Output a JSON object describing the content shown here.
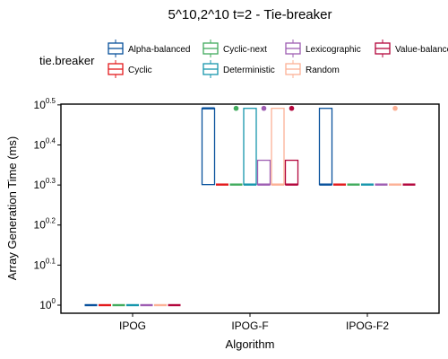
{
  "chart_data": {
    "type": "box",
    "title": "5^10,2^10 t=2 - Tie-breaker",
    "xlabel": "Algorithm",
    "ylabel": "Array Generation Time (ms)",
    "y_scale": "log10",
    "ylim": [
      1.0,
      3.16
    ],
    "y_ticks": [
      {
        "base": "10",
        "exp": "0"
      },
      {
        "base": "10",
        "exp": "0.1"
      },
      {
        "base": "10",
        "exp": "0.2"
      },
      {
        "base": "10",
        "exp": "0.3"
      },
      {
        "base": "10",
        "exp": "0.4"
      },
      {
        "base": "10",
        "exp": "0.5"
      }
    ],
    "categories": [
      "IPOG",
      "IPOG-F",
      "IPOG-F2"
    ],
    "legend": {
      "title": "tie.breaker",
      "position": "top",
      "row1": [
        "Alpha-balanced",
        "Cyclic-next",
        "Lexicographic",
        "Value-balanced"
      ],
      "row2": [
        "Cyclic",
        "Deterministic",
        "Random"
      ]
    },
    "series": [
      {
        "name": "Alpha-balanced",
        "color": "#08519c",
        "boxes": [
          {
            "min": 1,
            "q1": 1,
            "median": 1,
            "q3": 1,
            "max": 1,
            "outliers": []
          },
          {
            "min": 2,
            "q1": 2,
            "median": 3.1,
            "q3": 3.1,
            "max": 3.1,
            "outliers": []
          },
          {
            "min": 2,
            "q1": 2,
            "median": 2,
            "q3": 3.1,
            "max": 3.1,
            "outliers": []
          }
        ]
      },
      {
        "name": "Cyclic",
        "color": "#e31a1c",
        "boxes": [
          {
            "min": 1,
            "q1": 1,
            "median": 1,
            "q3": 1,
            "max": 1,
            "outliers": []
          },
          {
            "min": 2,
            "q1": 2,
            "median": 2,
            "q3": 2,
            "max": 2,
            "outliers": []
          },
          {
            "min": 2,
            "q1": 2,
            "median": 2,
            "q3": 2,
            "max": 2,
            "outliers": []
          }
        ]
      },
      {
        "name": "Cyclic-next",
        "color": "#41ab5d",
        "boxes": [
          {
            "min": 1,
            "q1": 1,
            "median": 1,
            "q3": 1,
            "max": 1,
            "outliers": []
          },
          {
            "min": 2,
            "q1": 2,
            "median": 2,
            "q3": 2,
            "max": 2,
            "outliers": [
              3.1
            ]
          },
          {
            "min": 2,
            "q1": 2,
            "median": 2,
            "q3": 2,
            "max": 2,
            "outliers": []
          }
        ]
      },
      {
        "name": "Deterministic",
        "color": "#1696ac",
        "boxes": [
          {
            "min": 1,
            "q1": 1,
            "median": 1,
            "q3": 1,
            "max": 1,
            "outliers": []
          },
          {
            "min": 2,
            "q1": 2,
            "median": 2,
            "q3": 3.1,
            "max": 3.1,
            "outliers": []
          },
          {
            "min": 2,
            "q1": 2,
            "median": 2,
            "q3": 2,
            "max": 2,
            "outliers": []
          }
        ]
      },
      {
        "name": "Lexicographic",
        "color": "#9e5db2",
        "boxes": [
          {
            "min": 1,
            "q1": 1,
            "median": 1,
            "q3": 1,
            "max": 1,
            "outliers": []
          },
          {
            "min": 2,
            "q1": 2,
            "median": 2,
            "q3": 2.3,
            "max": 2.3,
            "outliers": [
              3.1
            ]
          },
          {
            "min": 2,
            "q1": 2,
            "median": 2,
            "q3": 2,
            "max": 2,
            "outliers": []
          }
        ]
      },
      {
        "name": "Random",
        "color": "#fcb196",
        "boxes": [
          {
            "min": 1,
            "q1": 1,
            "median": 1,
            "q3": 1,
            "max": 1,
            "outliers": []
          },
          {
            "min": 2,
            "q1": 2,
            "median": 2,
            "q3": 3.1,
            "max": 3.1,
            "outliers": []
          },
          {
            "min": 2,
            "q1": 2,
            "median": 2,
            "q3": 2,
            "max": 2,
            "outliers": [
              3.1
            ]
          }
        ]
      },
      {
        "name": "Value-balanced",
        "color": "#b3063c",
        "boxes": [
          {
            "min": 1,
            "q1": 1,
            "median": 1,
            "q3": 1,
            "max": 1,
            "outliers": []
          },
          {
            "min": 2,
            "q1": 2,
            "median": 2,
            "q3": 2.3,
            "max": 2.3,
            "outliers": [
              3.1
            ]
          },
          {
            "min": 2,
            "q1": 2,
            "median": 2,
            "q3": 2,
            "max": 2,
            "outliers": []
          }
        ]
      }
    ]
  }
}
